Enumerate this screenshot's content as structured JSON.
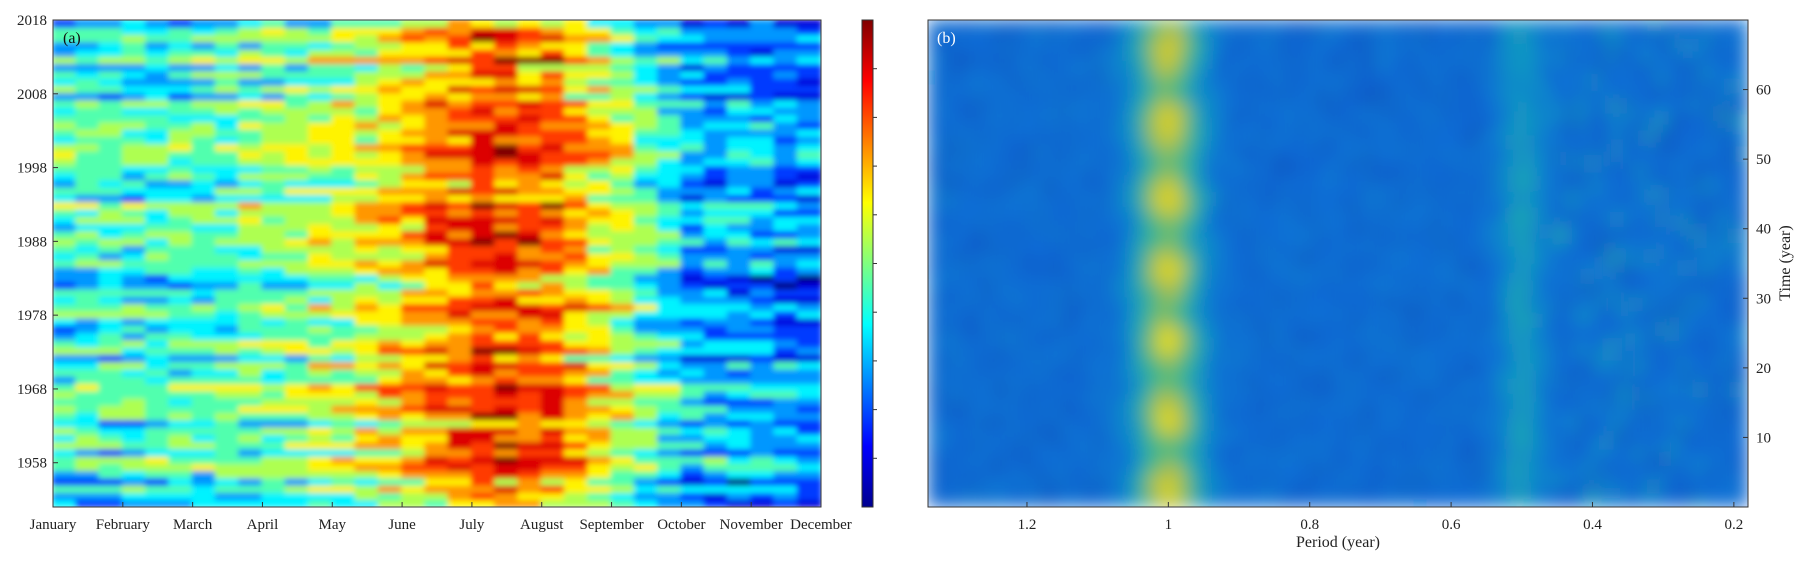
{
  "chart_data": [
    {
      "type": "heatmap",
      "panel_label": "(a)",
      "x_categories": [
        "January",
        "February",
        "March",
        "April",
        "May",
        "June",
        "July",
        "August",
        "September",
        "October",
        "November",
        "December"
      ],
      "y_ticks": [
        1958,
        1968,
        1978,
        1988,
        1998,
        2008,
        2018
      ],
      "ylim": [
        1952,
        2018
      ],
      "colormap": "jet",
      "colorbar": true,
      "grid": false,
      "monthly_mean_intensity": [
        0.4,
        0.4,
        0.42,
        0.47,
        0.53,
        0.66,
        0.82,
        0.77,
        0.52,
        0.28,
        0.26,
        0.22
      ]
    },
    {
      "type": "heatmap",
      "panel_label": "(b)",
      "xlabel": "Period (year)",
      "ylabel": "Time (year)",
      "x_ticks": [
        1.2,
        1,
        0.8,
        0.6,
        0.4,
        0.2
      ],
      "xlim": [
        1.34,
        0.18
      ],
      "y_ticks": [
        10,
        20,
        30,
        40,
        50,
        60
      ],
      "ylim": [
        0,
        70
      ],
      "colormap": "parula",
      "grid": false,
      "dominant_period": 1
    }
  ],
  "colors": {
    "jet_low": "#00008f",
    "jet_mid": "#7fff7f",
    "jet_high": "#800000",
    "parula_low": "#352a87",
    "parula_high": "#f9fb0e",
    "panel_a_label": "#111111",
    "panel_b_label": "#ffffff"
  }
}
